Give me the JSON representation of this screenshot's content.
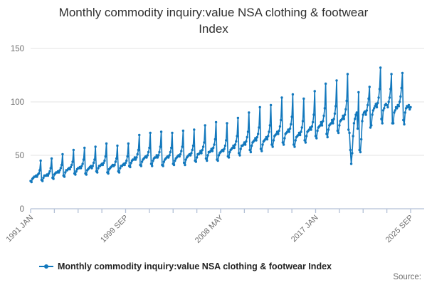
{
  "title": {
    "line1": "Monthly commodity inquiry:value NSA clothing & footwear",
    "line2": "Index"
  },
  "legend": {
    "label": "Monthly commodity inquiry:value NSA clothing & footwear Index"
  },
  "source": {
    "label": "Source:"
  },
  "colors": {
    "line": "#1278bd",
    "grid": "#e3e3e3",
    "axis": "#b3c0d6",
    "tick_text": "#6f6f6f"
  },
  "chart_data": {
    "type": "line",
    "title": "Monthly commodity inquiry:value NSA clothing & footwear Index",
    "frequency": "monthly",
    "x_start": "1991 JAN",
    "x_end": "2025 SEP",
    "ylim": [
      0,
      150
    ],
    "y_ticks": [
      0,
      50,
      100,
      150
    ],
    "x_tick_count": 17,
    "x_tick_labels": [
      "1991 JAN",
      "1999 SEP",
      "2008 MAY",
      "2017 JAN",
      "2025 SEP"
    ],
    "labeled_tick_indices": [
      0,
      4,
      8,
      12,
      16
    ],
    "grid": "horizontal",
    "legend_position": "bottom",
    "marker": "circle",
    "series": [
      {
        "name": "Monthly commodity inquiry:value NSA clothing & footwear Index",
        "monthly_values": {
          "1991": [
            26,
            25,
            28,
            29,
            30,
            30,
            31,
            30,
            32,
            33,
            36,
            45
          ],
          "1992": [
            27,
            26,
            29,
            31,
            31,
            31,
            32,
            31,
            33,
            35,
            38,
            47
          ],
          "1993": [
            29,
            28,
            32,
            33,
            34,
            34,
            35,
            34,
            36,
            38,
            41,
            51
          ],
          "1994": [
            31,
            30,
            34,
            36,
            36,
            37,
            38,
            37,
            39,
            41,
            44,
            55
          ],
          "1995": [
            33,
            32,
            35,
            37,
            38,
            38,
            39,
            38,
            40,
            42,
            46,
            57
          ],
          "1996": [
            33,
            32,
            36,
            37,
            38,
            39,
            40,
            38,
            40,
            43,
            46,
            58
          ],
          "1997": [
            35,
            34,
            38,
            40,
            40,
            41,
            42,
            41,
            43,
            45,
            49,
            61
          ],
          "1998": [
            34,
            33,
            37,
            38,
            39,
            40,
            41,
            40,
            41,
            44,
            47,
            59
          ],
          "1999": [
            35,
            34,
            38,
            40,
            40,
            41,
            42,
            41,
            43,
            45,
            49,
            61
          ],
          "2000": [
            40,
            39,
            43,
            45,
            46,
            46,
            48,
            46,
            48,
            51,
            55,
            69
          ],
          "2001": [
            41,
            40,
            44,
            46,
            47,
            48,
            49,
            48,
            50,
            53,
            57,
            71
          ],
          "2002": [
            42,
            40,
            45,
            47,
            48,
            48,
            50,
            48,
            50,
            53,
            58,
            72
          ],
          "2003": [
            41,
            40,
            44,
            46,
            47,
            48,
            49,
            48,
            50,
            53,
            57,
            71
          ],
          "2004": [
            42,
            41,
            45,
            47,
            48,
            49,
            50,
            49,
            51,
            54,
            58,
            73
          ],
          "2005": [
            43,
            41,
            46,
            48,
            49,
            50,
            51,
            50,
            52,
            55,
            59,
            74
          ],
          "2006": [
            45,
            44,
            48,
            51,
            51,
            52,
            54,
            52,
            55,
            58,
            62,
            78
          ],
          "2007": [
            47,
            45,
            50,
            53,
            53,
            54,
            56,
            54,
            57,
            60,
            65,
            81
          ],
          "2008": [
            46,
            45,
            50,
            52,
            53,
            54,
            55,
            54,
            56,
            59,
            64,
            80
          ],
          "2009": [
            49,
            48,
            53,
            55,
            56,
            57,
            59,
            57,
            60,
            63,
            68,
            85
          ],
          "2010": [
            52,
            50,
            56,
            59,
            59,
            60,
            62,
            60,
            63,
            67,
            72,
            90
          ],
          "2011": [
            55,
            53,
            59,
            62,
            63,
            64,
            66,
            64,
            67,
            70,
            76,
            95
          ],
          "2012": [
            56,
            54,
            60,
            63,
            64,
            65,
            67,
            65,
            68,
            72,
            78,
            97
          ],
          "2013": [
            60,
            58,
            64,
            68,
            69,
            70,
            72,
            70,
            73,
            77,
            83,
            104
          ],
          "2014": [
            62,
            60,
            66,
            70,
            71,
            72,
            74,
            72,
            75,
            79,
            86,
            107
          ],
          "2015": [
            60,
            58,
            64,
            67,
            68,
            69,
            71,
            69,
            72,
            76,
            82,
            103
          ],
          "2016": [
            64,
            62,
            68,
            72,
            73,
            74,
            76,
            74,
            77,
            81,
            88,
            110
          ],
          "2017": [
            68,
            66,
            73,
            76,
            77,
            78,
            81,
            78,
            82,
            87,
            94,
            117
          ],
          "2018": [
            70,
            67,
            74,
            78,
            79,
            80,
            83,
            80,
            84,
            89,
            96,
            120
          ],
          "2019": [
            73,
            71,
            78,
            82,
            83,
            84,
            87,
            84,
            88,
            93,
            101,
            126
          ],
          "2020": [
            74,
            71,
            55,
            42,
            52,
            68,
            80,
            84,
            88,
            90,
            75,
            109
          ],
          "2021": [
            55,
            53,
            65,
            82,
            88,
            90,
            91,
            88,
            92,
            97,
            103,
            114
          ],
          "2022": [
            76,
            78,
            88,
            92,
            94,
            96,
            98,
            95,
            99,
            104,
            112,
            132
          ],
          "2023": [
            84,
            80,
            92,
            94,
            97,
            98,
            97,
            95,
            100,
            104,
            112,
            126
          ],
          "2024": [
            80,
            80,
            90,
            92,
            95,
            94,
            97,
            96,
            100,
            105,
            113,
            127
          ],
          "2025": [
            83,
            79,
            90,
            94,
            96,
            95,
            97,
            93,
            95
          ]
        }
      }
    ]
  }
}
